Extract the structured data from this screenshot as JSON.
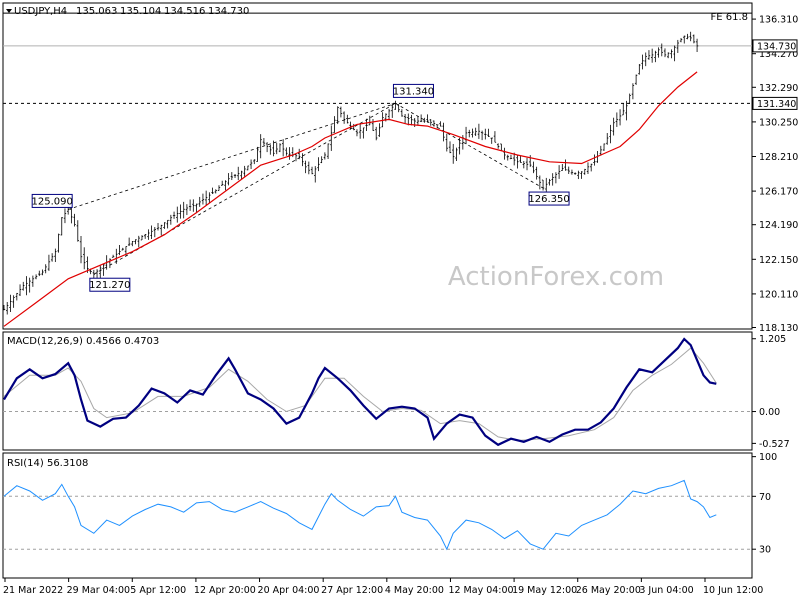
{
  "chart_data": [
    {
      "panel": "price",
      "type": "candlestick",
      "symbol": "USDJPY",
      "timeframe": "H4",
      "header_values": [
        "135.063",
        "135.104",
        "134.516",
        "134.730"
      ],
      "price_line": {
        "value": 134.73,
        "label": "134.730"
      },
      "level_line": {
        "value": 131.34,
        "label": "131.340"
      },
      "fe_line": {
        "value": 136.66,
        "label": "FE 61.8"
      },
      "y_ticks": [
        "136.310",
        "134.270",
        "132.290",
        "130.250",
        "128.210",
        "126.170",
        "124.190",
        "122.150",
        "120.110",
        "118.130"
      ],
      "x_labels": [
        "21 Mar 2022",
        "29 Mar 04:00",
        "5 Apr 12:00",
        "12 Apr 20:00",
        "20 Apr 04:00",
        "27 Apr 12:00",
        "4 May 20:00",
        "12 May 04:00",
        "19 May 12:00",
        "26 May 20:00",
        "3 Jun 04:00",
        "10 Jun 12:00"
      ],
      "price_path": [
        [
          0,
          119.2
        ],
        [
          3,
          120.6
        ],
        [
          6,
          121.4
        ],
        [
          8,
          122.6
        ],
        [
          9,
          124.6
        ],
        [
          10,
          125.09
        ],
        [
          11,
          124.2
        ],
        [
          12,
          122.3
        ],
        [
          13,
          121.6
        ],
        [
          14,
          121.27
        ],
        [
          16,
          122.0
        ],
        [
          18,
          122.6
        ],
        [
          20,
          123.2
        ],
        [
          22,
          123.6
        ],
        [
          24,
          124.0
        ],
        [
          26,
          124.6
        ],
        [
          28,
          125.1
        ],
        [
          30,
          125.4
        ],
        [
          33,
          126.2
        ],
        [
          35,
          126.9
        ],
        [
          37,
          127.3
        ],
        [
          39,
          128.0
        ],
        [
          40,
          129.2
        ],
        [
          41,
          128.8
        ],
        [
          42,
          128.4
        ],
        [
          43,
          128.9
        ],
        [
          44,
          128.4
        ],
        [
          46,
          128.2
        ],
        [
          47,
          127.6
        ],
        [
          48,
          127.2
        ],
        [
          50,
          128.3
        ],
        [
          51,
          129.6
        ],
        [
          52,
          131.1
        ],
        [
          53,
          130.4
        ],
        [
          55,
          129.6
        ],
        [
          57,
          130.2
        ],
        [
          58,
          129.3
        ],
        [
          59,
          130.5
        ],
        [
          60,
          130.9
        ],
        [
          61,
          131.34
        ],
        [
          62,
          130.6
        ],
        [
          64,
          130.3
        ],
        [
          66,
          130.3
        ],
        [
          68,
          130.0
        ],
        [
          69,
          128.7
        ],
        [
          70,
          128.2
        ],
        [
          71,
          129.0
        ],
        [
          72,
          129.6
        ],
        [
          74,
          129.7
        ],
        [
          76,
          129.3
        ],
        [
          77,
          128.8
        ],
        [
          78,
          128.3
        ],
        [
          80,
          127.9
        ],
        [
          82,
          127.7
        ],
        [
          84,
          126.35
        ],
        [
          85,
          126.8
        ],
        [
          87,
          127.5
        ],
        [
          89,
          127.2
        ],
        [
          90,
          127.3
        ],
        [
          91,
          127.6
        ],
        [
          92,
          127.9
        ],
        [
          93,
          128.6
        ],
        [
          94,
          129.3
        ],
        [
          95,
          130.2
        ],
        [
          96,
          130.6
        ],
        [
          97,
          131.2
        ],
        [
          98,
          132.4
        ],
        [
          99,
          133.6
        ],
        [
          100,
          134.1
        ],
        [
          101,
          134.2
        ],
        [
          102,
          134.5
        ],
        [
          103,
          134.2
        ],
        [
          104,
          134.4
        ],
        [
          105,
          134.9
        ],
        [
          106,
          135.3
        ],
        [
          107,
          135.2
        ],
        [
          108,
          134.73
        ]
      ],
      "ma_path": [
        [
          0,
          118.2
        ],
        [
          5,
          119.6
        ],
        [
          10,
          121.0
        ],
        [
          15,
          121.8
        ],
        [
          20,
          122.6
        ],
        [
          25,
          123.6
        ],
        [
          30,
          124.9
        ],
        [
          35,
          126.3
        ],
        [
          40,
          127.7
        ],
        [
          45,
          128.3
        ],
        [
          48,
          128.8
        ],
        [
          50,
          129.3
        ],
        [
          55,
          130.1
        ],
        [
          60,
          130.4
        ],
        [
          63,
          130.1
        ],
        [
          66,
          130.0
        ],
        [
          70,
          129.5
        ],
        [
          75,
          128.8
        ],
        [
          80,
          128.3
        ],
        [
          85,
          127.9
        ],
        [
          90,
          127.8
        ],
        [
          93,
          128.3
        ],
        [
          96,
          128.8
        ],
        [
          99,
          129.8
        ],
        [
          102,
          131.2
        ],
        [
          105,
          132.3
        ],
        [
          108,
          133.2
        ]
      ],
      "trend_lines": [
        {
          "from": [
            10,
            125.09
          ],
          "to": [
            61,
            131.34
          ]
        },
        {
          "from": [
            14,
            121.27
          ],
          "to": [
            61,
            131.34
          ]
        },
        {
          "from": [
            61,
            131.34
          ],
          "to": [
            84,
            126.35
          ]
        }
      ],
      "annotations": [
        {
          "x": 10,
          "y": 125.09,
          "label": "125.090"
        },
        {
          "x": 14,
          "y": 121.27,
          "label": "121.270"
        },
        {
          "x": 61,
          "y": 131.34,
          "label": "131.340"
        },
        {
          "x": 84,
          "y": 126.35,
          "label": "126.350"
        }
      ],
      "watermark": "ActionForex.com",
      "ylim": [
        118.1,
        137.2
      ],
      "xlim": [
        0,
        115
      ]
    },
    {
      "panel": "macd",
      "type": "line",
      "title": "MACD(12,26,9) 0.4566 0.4703",
      "y_ticks": [
        "1.205",
        "0.00",
        "-0.527"
      ],
      "zero_value": 0.0,
      "macd": [
        [
          0,
          0.2
        ],
        [
          2,
          0.55
        ],
        [
          4,
          0.7
        ],
        [
          6,
          0.55
        ],
        [
          8,
          0.62
        ],
        [
          10,
          0.8
        ],
        [
          11,
          0.6
        ],
        [
          12,
          0.2
        ],
        [
          13,
          -0.15
        ],
        [
          15,
          -0.25
        ],
        [
          17,
          -0.12
        ],
        [
          19,
          -0.1
        ],
        [
          21,
          0.1
        ],
        [
          23,
          0.38
        ],
        [
          25,
          0.3
        ],
        [
          27,
          0.15
        ],
        [
          29,
          0.35
        ],
        [
          31,
          0.28
        ],
        [
          33,
          0.6
        ],
        [
          35,
          0.88
        ],
        [
          36,
          0.7
        ],
        [
          38,
          0.3
        ],
        [
          40,
          0.2
        ],
        [
          42,
          0.05
        ],
        [
          44,
          -0.2
        ],
        [
          46,
          -0.1
        ],
        [
          48,
          0.3
        ],
        [
          49,
          0.55
        ],
        [
          50,
          0.72
        ],
        [
          52,
          0.55
        ],
        [
          54,
          0.35
        ],
        [
          56,
          0.1
        ],
        [
          58,
          -0.12
        ],
        [
          60,
          0.05
        ],
        [
          62,
          0.08
        ],
        [
          64,
          0.05
        ],
        [
          66,
          -0.1
        ],
        [
          67,
          -0.45
        ],
        [
          69,
          -0.2
        ],
        [
          71,
          -0.05
        ],
        [
          73,
          -0.1
        ],
        [
          75,
          -0.4
        ],
        [
          77,
          -0.55
        ],
        [
          79,
          -0.45
        ],
        [
          81,
          -0.5
        ],
        [
          83,
          -0.42
        ],
        [
          85,
          -0.5
        ],
        [
          87,
          -0.38
        ],
        [
          89,
          -0.3
        ],
        [
          91,
          -0.3
        ],
        [
          93,
          -0.18
        ],
        [
          95,
          0.05
        ],
        [
          97,
          0.4
        ],
        [
          99,
          0.7
        ],
        [
          101,
          0.65
        ],
        [
          103,
          0.85
        ],
        [
          105,
          1.05
        ],
        [
          106,
          1.2
        ],
        [
          107,
          1.1
        ],
        [
          108,
          0.85
        ],
        [
          109,
          0.6
        ],
        [
          110,
          0.48
        ],
        [
          111,
          0.46
        ]
      ],
      "signal": [
        [
          0,
          0.25
        ],
        [
          4,
          0.6
        ],
        [
          8,
          0.6
        ],
        [
          10,
          0.72
        ],
        [
          12,
          0.5
        ],
        [
          14,
          0.05
        ],
        [
          16,
          -0.1
        ],
        [
          20,
          -0.02
        ],
        [
          24,
          0.25
        ],
        [
          28,
          0.25
        ],
        [
          32,
          0.4
        ],
        [
          35,
          0.7
        ],
        [
          38,
          0.5
        ],
        [
          41,
          0.2
        ],
        [
          44,
          0.0
        ],
        [
          47,
          0.1
        ],
        [
          50,
          0.55
        ],
        [
          53,
          0.55
        ],
        [
          56,
          0.25
        ],
        [
          59,
          0.0
        ],
        [
          62,
          0.05
        ],
        [
          65,
          0.02
        ],
        [
          68,
          -0.2
        ],
        [
          71,
          -0.15
        ],
        [
          74,
          -0.2
        ],
        [
          77,
          -0.42
        ],
        [
          80,
          -0.48
        ],
        [
          84,
          -0.45
        ],
        [
          88,
          -0.4
        ],
        [
          92,
          -0.3
        ],
        [
          95,
          -0.1
        ],
        [
          98,
          0.35
        ],
        [
          101,
          0.6
        ],
        [
          104,
          0.78
        ],
        [
          107,
          1.05
        ],
        [
          109,
          0.8
        ],
        [
          111,
          0.47
        ]
      ]
    },
    {
      "panel": "rsi",
      "type": "line",
      "title": "RSI(14) 56.3108",
      "y_ticks": [
        "100",
        "70",
        "30"
      ],
      "levels": [
        70,
        30
      ],
      "rsi": [
        [
          0,
          70
        ],
        [
          2,
          78
        ],
        [
          4,
          74
        ],
        [
          6,
          67
        ],
        [
          8,
          72
        ],
        [
          9,
          79
        ],
        [
          10,
          70
        ],
        [
          11,
          62
        ],
        [
          12,
          48
        ],
        [
          14,
          42
        ],
        [
          16,
          52
        ],
        [
          18,
          48
        ],
        [
          20,
          55
        ],
        [
          22,
          60
        ],
        [
          24,
          64
        ],
        [
          26,
          62
        ],
        [
          28,
          58
        ],
        [
          30,
          65
        ],
        [
          32,
          66
        ],
        [
          34,
          60
        ],
        [
          36,
          58
        ],
        [
          38,
          62
        ],
        [
          40,
          66
        ],
        [
          42,
          61
        ],
        [
          44,
          57
        ],
        [
          46,
          50
        ],
        [
          48,
          45
        ],
        [
          50,
          64
        ],
        [
          51,
          72
        ],
        [
          52,
          67
        ],
        [
          54,
          60
        ],
        [
          56,
          55
        ],
        [
          58,
          62
        ],
        [
          60,
          63
        ],
        [
          61,
          70
        ],
        [
          62,
          58
        ],
        [
          64,
          54
        ],
        [
          66,
          52
        ],
        [
          68,
          40
        ],
        [
          69,
          30
        ],
        [
          70,
          42
        ],
        [
          72,
          52
        ],
        [
          74,
          50
        ],
        [
          76,
          45
        ],
        [
          78,
          38
        ],
        [
          80,
          44
        ],
        [
          82,
          34
        ],
        [
          84,
          30
        ],
        [
          86,
          42
        ],
        [
          88,
          40
        ],
        [
          90,
          48
        ],
        [
          92,
          52
        ],
        [
          94,
          56
        ],
        [
          96,
          64
        ],
        [
          98,
          74
        ],
        [
          100,
          72
        ],
        [
          102,
          76
        ],
        [
          104,
          78
        ],
        [
          106,
          82
        ],
        [
          107,
          68
        ],
        [
          108,
          66
        ],
        [
          109,
          62
        ],
        [
          110,
          54
        ],
        [
          111,
          56
        ]
      ]
    }
  ]
}
